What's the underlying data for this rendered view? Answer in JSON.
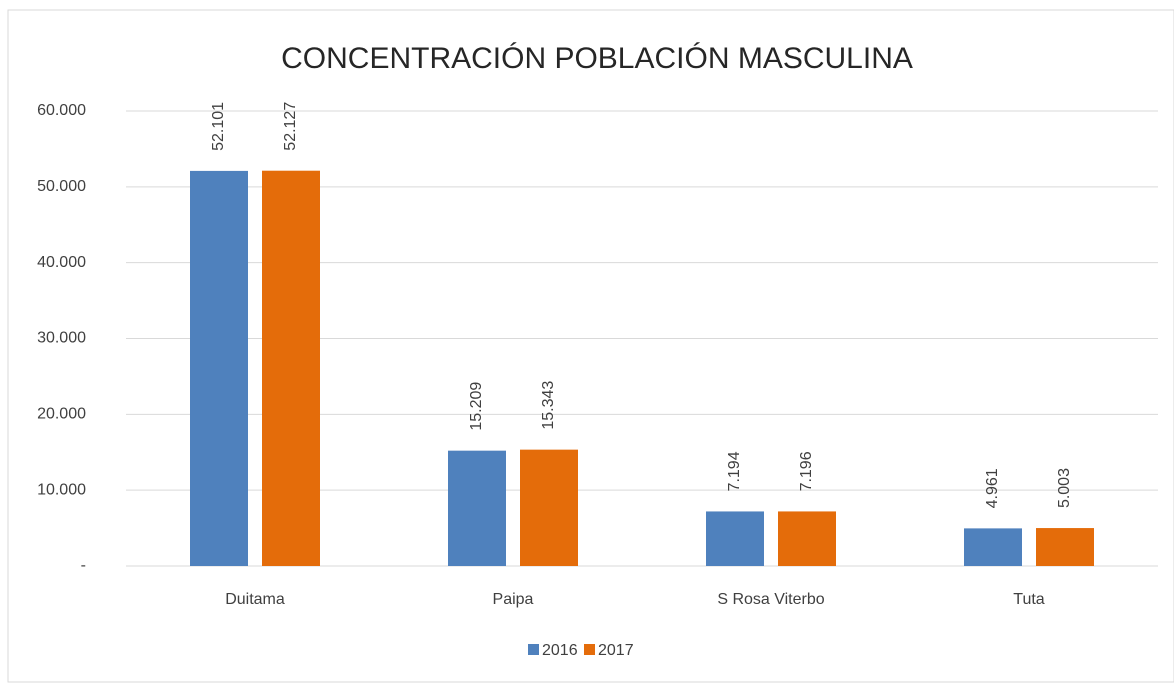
{
  "chart_data": {
    "type": "bar",
    "title": "CONCENTRACIÓN POBLACIÓN MASCULINA",
    "categories": [
      "Duitama",
      "Paipa",
      "S Rosa Viterbo",
      "Tuta"
    ],
    "series": [
      {
        "name": "2016",
        "color": "#4f81bd",
        "values": [
          52101,
          15209,
          7194,
          4961
        ],
        "value_labels": [
          "52.101",
          "15.209",
          "7.194",
          "4.961"
        ]
      },
      {
        "name": "2017",
        "color": "#e46c0a",
        "values": [
          52127,
          15343,
          7196,
          5003
        ],
        "value_labels": [
          "52.127",
          "15.343",
          "7.196",
          "5.003"
        ]
      }
    ],
    "ylim": [
      0,
      60000
    ],
    "yticks": [
      {
        "value": 0,
        "label": "-"
      },
      {
        "value": 10000,
        "label": "10.000"
      },
      {
        "value": 20000,
        "label": "20.000"
      },
      {
        "value": 30000,
        "label": "30.000"
      },
      {
        "value": 40000,
        "label": "40.000"
      },
      {
        "value": 50000,
        "label": "50.000"
      },
      {
        "value": 60000,
        "label": "60.000"
      }
    ],
    "grid": true,
    "legend": "bottom"
  }
}
